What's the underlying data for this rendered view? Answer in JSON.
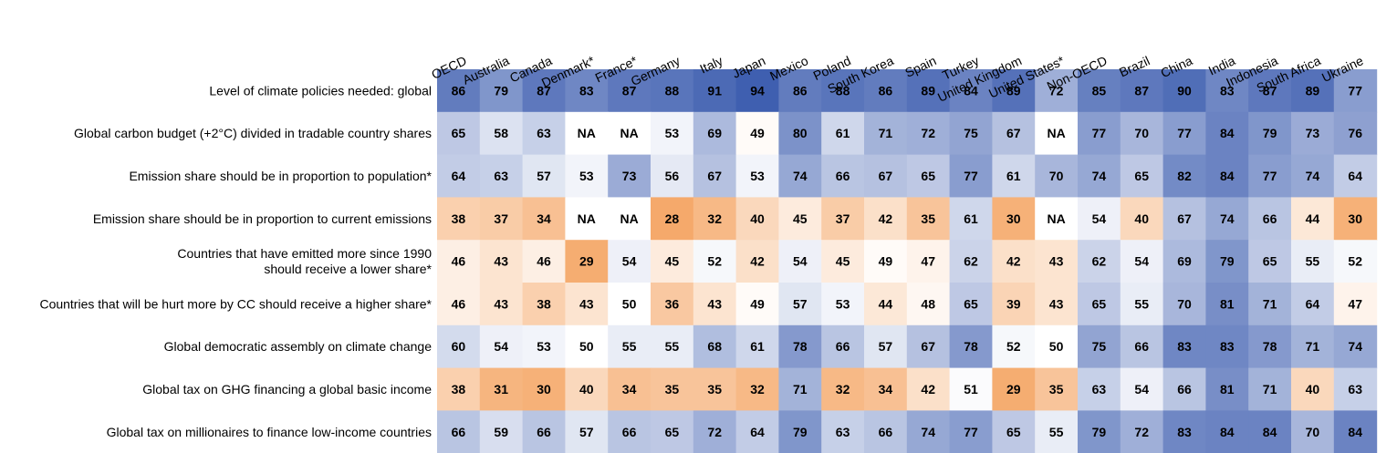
{
  "chart_data": {
    "type": "heatmap",
    "title": "",
    "xlabel": "",
    "ylabel": "",
    "columns": [
      "OECD",
      "Australia",
      "Canada",
      "Denmark*",
      "France*",
      "Germany",
      "Italy",
      "Japan",
      "Mexico",
      "Poland",
      "South Korea",
      "Spain",
      "Turkey",
      "United Kingdom",
      "United States*",
      "Non-OECD",
      "Brazil",
      "China",
      "India",
      "Indonesia",
      "South Africa",
      "Ukraine"
    ],
    "rows": [
      {
        "label": [
          "Level of climate policies needed: global"
        ],
        "values": [
          86,
          79,
          87,
          83,
          87,
          88,
          91,
          94,
          86,
          88,
          86,
          89,
          84,
          89,
          72,
          85,
          87,
          90,
          83,
          87,
          89,
          77
        ]
      },
      {
        "label": [
          "Global carbon budget (+2°C) divided in tradable country shares"
        ],
        "values": [
          65,
          58,
          63,
          null,
          null,
          53,
          69,
          49,
          80,
          61,
          71,
          72,
          75,
          67,
          null,
          77,
          70,
          77,
          84,
          79,
          73,
          76
        ]
      },
      {
        "label": [
          "Emission share should be in proportion to population*"
        ],
        "values": [
          64,
          63,
          57,
          53,
          73,
          56,
          67,
          53,
          74,
          66,
          67,
          65,
          77,
          61,
          70,
          74,
          65,
          82,
          84,
          77,
          74,
          64
        ]
      },
      {
        "label": [
          "Emission share should be in proportion to current emissions"
        ],
        "values": [
          38,
          37,
          34,
          null,
          null,
          28,
          32,
          40,
          45,
          37,
          42,
          35,
          61,
          30,
          null,
          54,
          40,
          67,
          74,
          66,
          44,
          30
        ]
      },
      {
        "label": [
          "Countries that have emitted more since 1990",
          "should receive a lower share*"
        ],
        "values": [
          46,
          43,
          46,
          29,
          54,
          45,
          52,
          42,
          54,
          45,
          49,
          47,
          62,
          42,
          43,
          62,
          54,
          69,
          79,
          65,
          55,
          52
        ]
      },
      {
        "label": [
          "Countries that will be hurt more by CC should receive a higher share*"
        ],
        "values": [
          46,
          43,
          38,
          43,
          50,
          36,
          43,
          49,
          57,
          53,
          44,
          48,
          65,
          39,
          43,
          65,
          55,
          70,
          81,
          71,
          64,
          47
        ]
      },
      {
        "label": [
          "Global democratic assembly on climate change"
        ],
        "values": [
          60,
          54,
          53,
          50,
          55,
          55,
          68,
          61,
          78,
          66,
          57,
          67,
          78,
          52,
          50,
          75,
          66,
          83,
          83,
          78,
          71,
          74
        ]
      },
      {
        "label": [
          "Global tax on GHG financing a global basic income"
        ],
        "values": [
          38,
          31,
          30,
          40,
          34,
          35,
          35,
          32,
          71,
          32,
          34,
          42,
          51,
          29,
          35,
          63,
          54,
          66,
          81,
          71,
          40,
          63
        ]
      },
      {
        "label": [
          "Global tax on millionaires to finance low-income countries"
        ],
        "values": [
          66,
          59,
          66,
          57,
          66,
          65,
          72,
          64,
          79,
          63,
          66,
          74,
          77,
          65,
          55,
          79,
          72,
          83,
          84,
          84,
          70,
          84
        ]
      }
    ],
    "na_label": "NA",
    "color_scale": {
      "low": "#f4a15d",
      "mid": "#ffffff",
      "high": "#3f5fb0",
      "midpoint": 50
    }
  }
}
